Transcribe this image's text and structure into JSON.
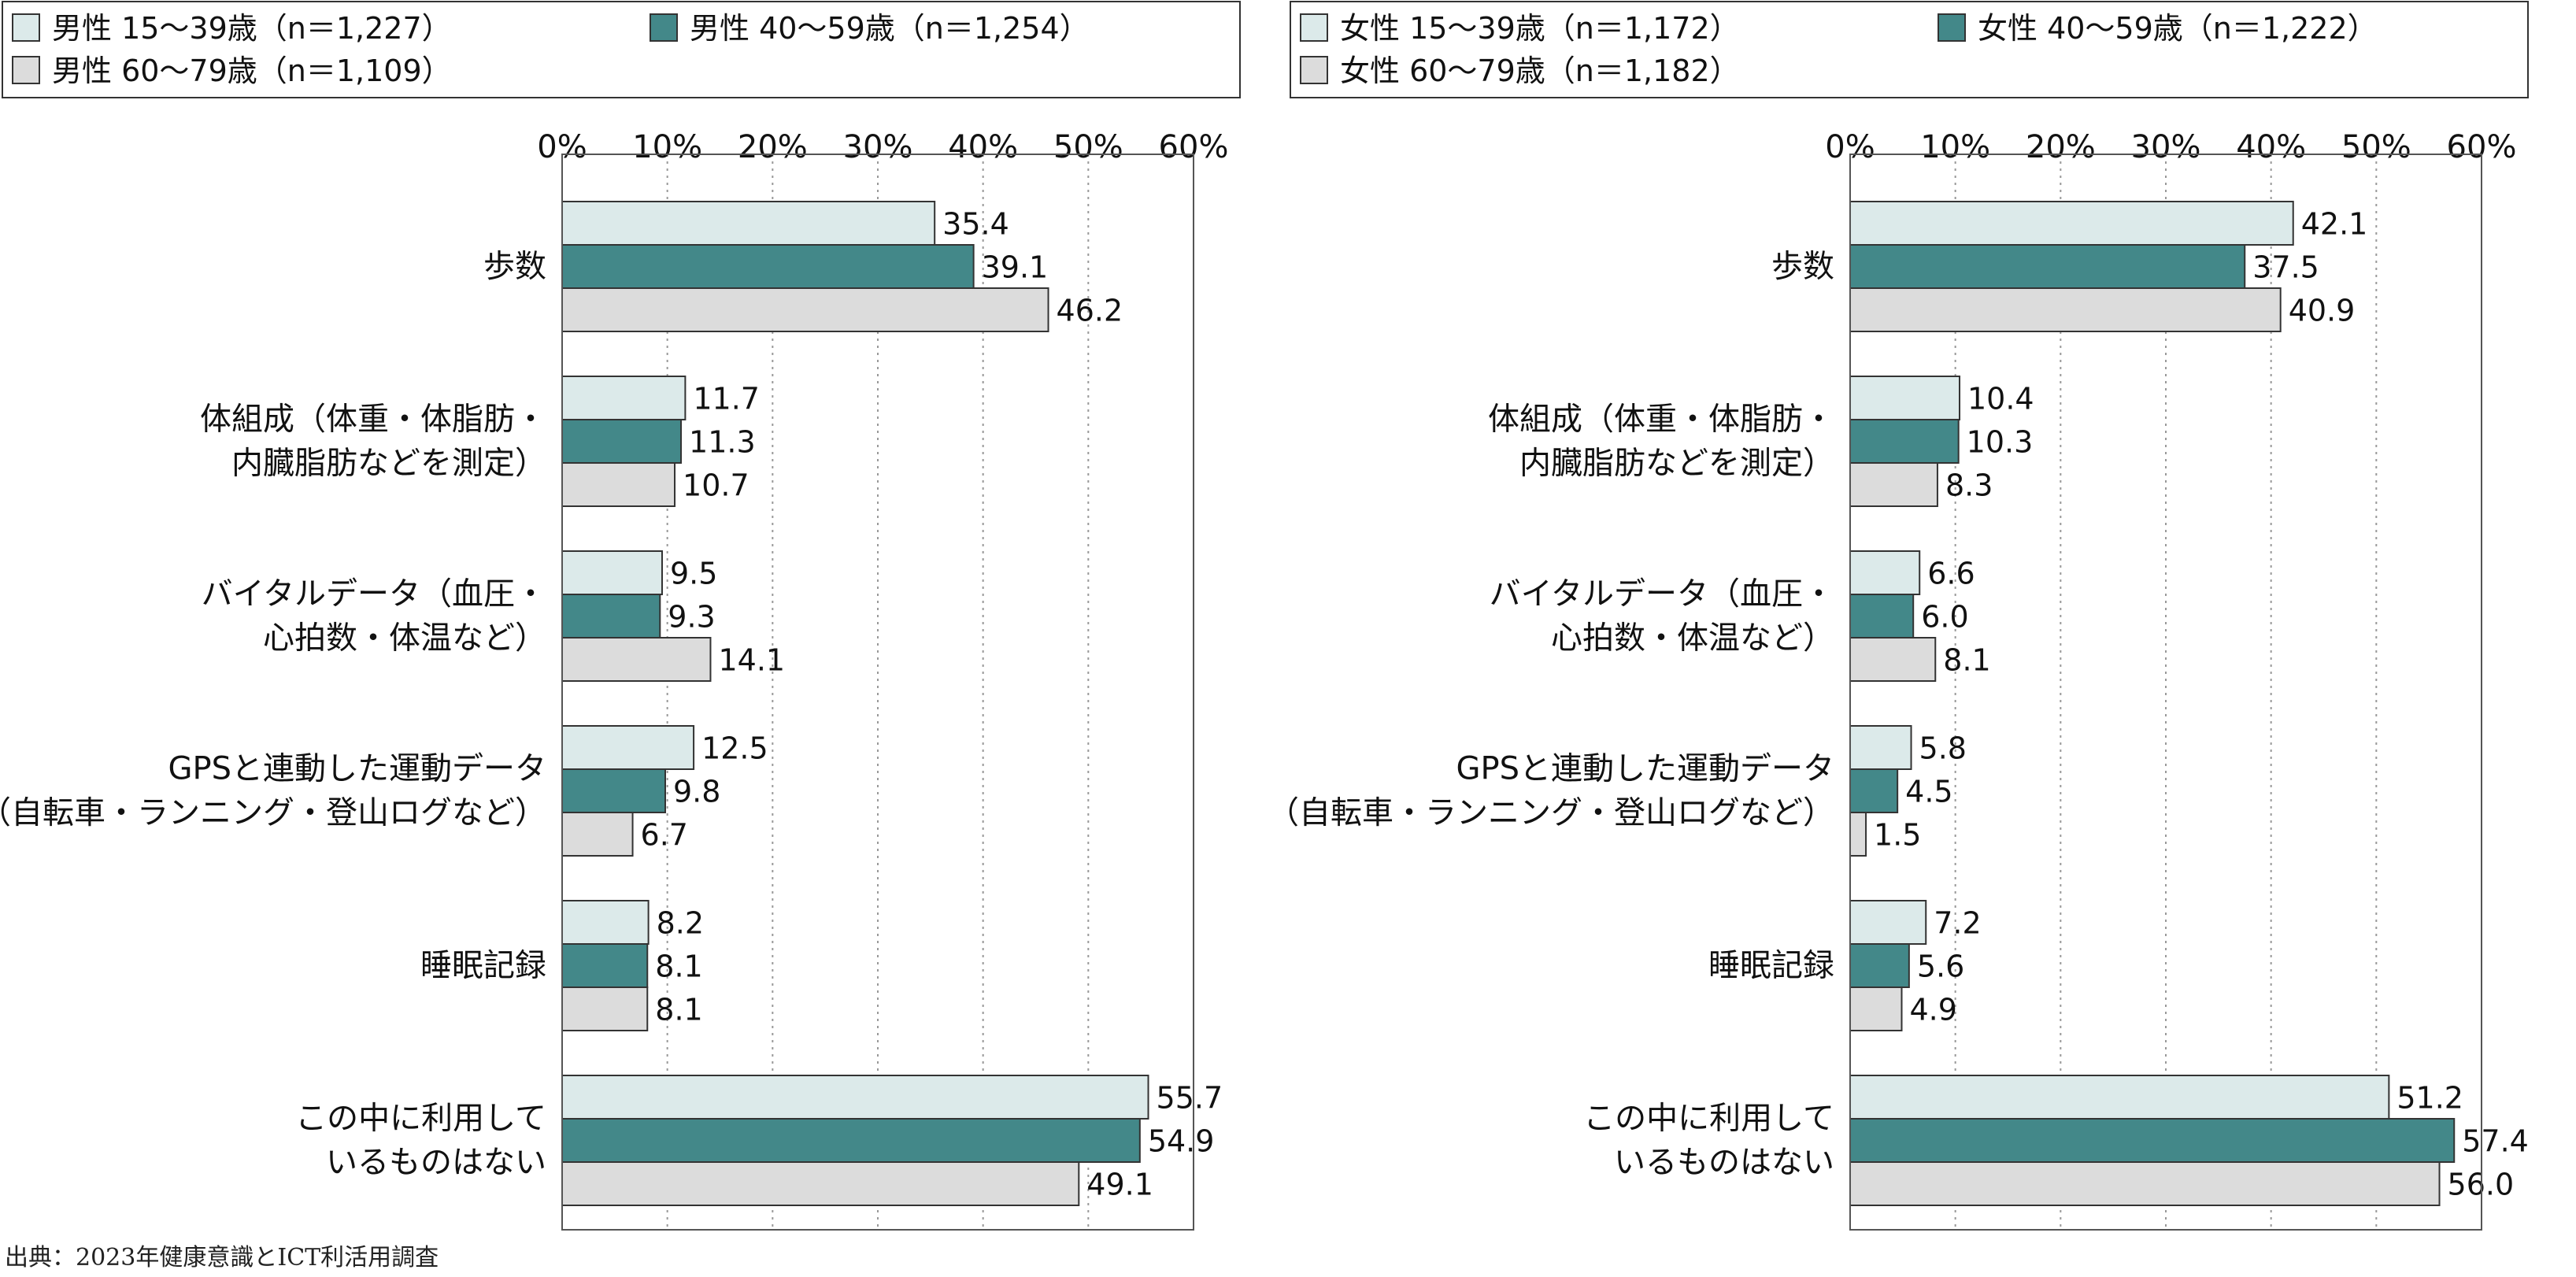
{
  "colors": {
    "young": "#dceaea",
    "middle": "#438889",
    "old": "#dcdcdc",
    "frame": "#555555",
    "grid": "#999999"
  },
  "categories": [
    [
      "歩数"
    ],
    [
      "体組成（体重・体脂肪・",
      "内臓脂肪などを測定）"
    ],
    [
      "バイタルデータ（血圧・",
      "心拍数・体温など）"
    ],
    [
      "GPSと連動した運動データ",
      "（自転車・ランニング・登山ログなど）"
    ],
    [
      "睡眠記録"
    ],
    [
      "この中に利用して",
      "いるものはない"
    ]
  ],
  "source": "出典：2023年健康意識とICT利活用調査",
  "chart_data": [
    {
      "type": "bar",
      "orientation": "horizontal",
      "xlim": [
        0,
        60
      ],
      "ticks": [
        "0%",
        "10%",
        "20%",
        "30%",
        "40%",
        "50%",
        "60%"
      ],
      "grid": true,
      "legend_position": "top",
      "series": [
        {
          "name": "男性 15～39歳（n＝1,227）",
          "values": [
            35.4,
            11.7,
            9.5,
            12.5,
            8.2,
            55.7
          ]
        },
        {
          "name": "男性 40～59歳（n＝1,254）",
          "values": [
            39.1,
            11.3,
            9.3,
            9.8,
            8.1,
            54.9
          ]
        },
        {
          "name": "男性 60～79歳（n＝1,109）",
          "values": [
            46.2,
            10.7,
            14.1,
            6.7,
            8.1,
            49.1
          ]
        }
      ]
    },
    {
      "type": "bar",
      "orientation": "horizontal",
      "xlim": [
        0,
        60
      ],
      "ticks": [
        "0%",
        "10%",
        "20%",
        "30%",
        "40%",
        "50%",
        "60%"
      ],
      "grid": true,
      "legend_position": "top",
      "series": [
        {
          "name": "女性 15～39歳（n＝1,172）",
          "values": [
            42.1,
            10.4,
            6.6,
            5.8,
            7.2,
            51.2
          ]
        },
        {
          "name": "女性 40～59歳（n＝1,222）",
          "values": [
            37.5,
            10.3,
            6.0,
            4.5,
            5.6,
            57.4
          ]
        },
        {
          "name": "女性 60～79歳（n＝1,182）",
          "values": [
            40.9,
            8.3,
            8.1,
            1.5,
            4.9,
            56.0
          ]
        }
      ]
    }
  ]
}
